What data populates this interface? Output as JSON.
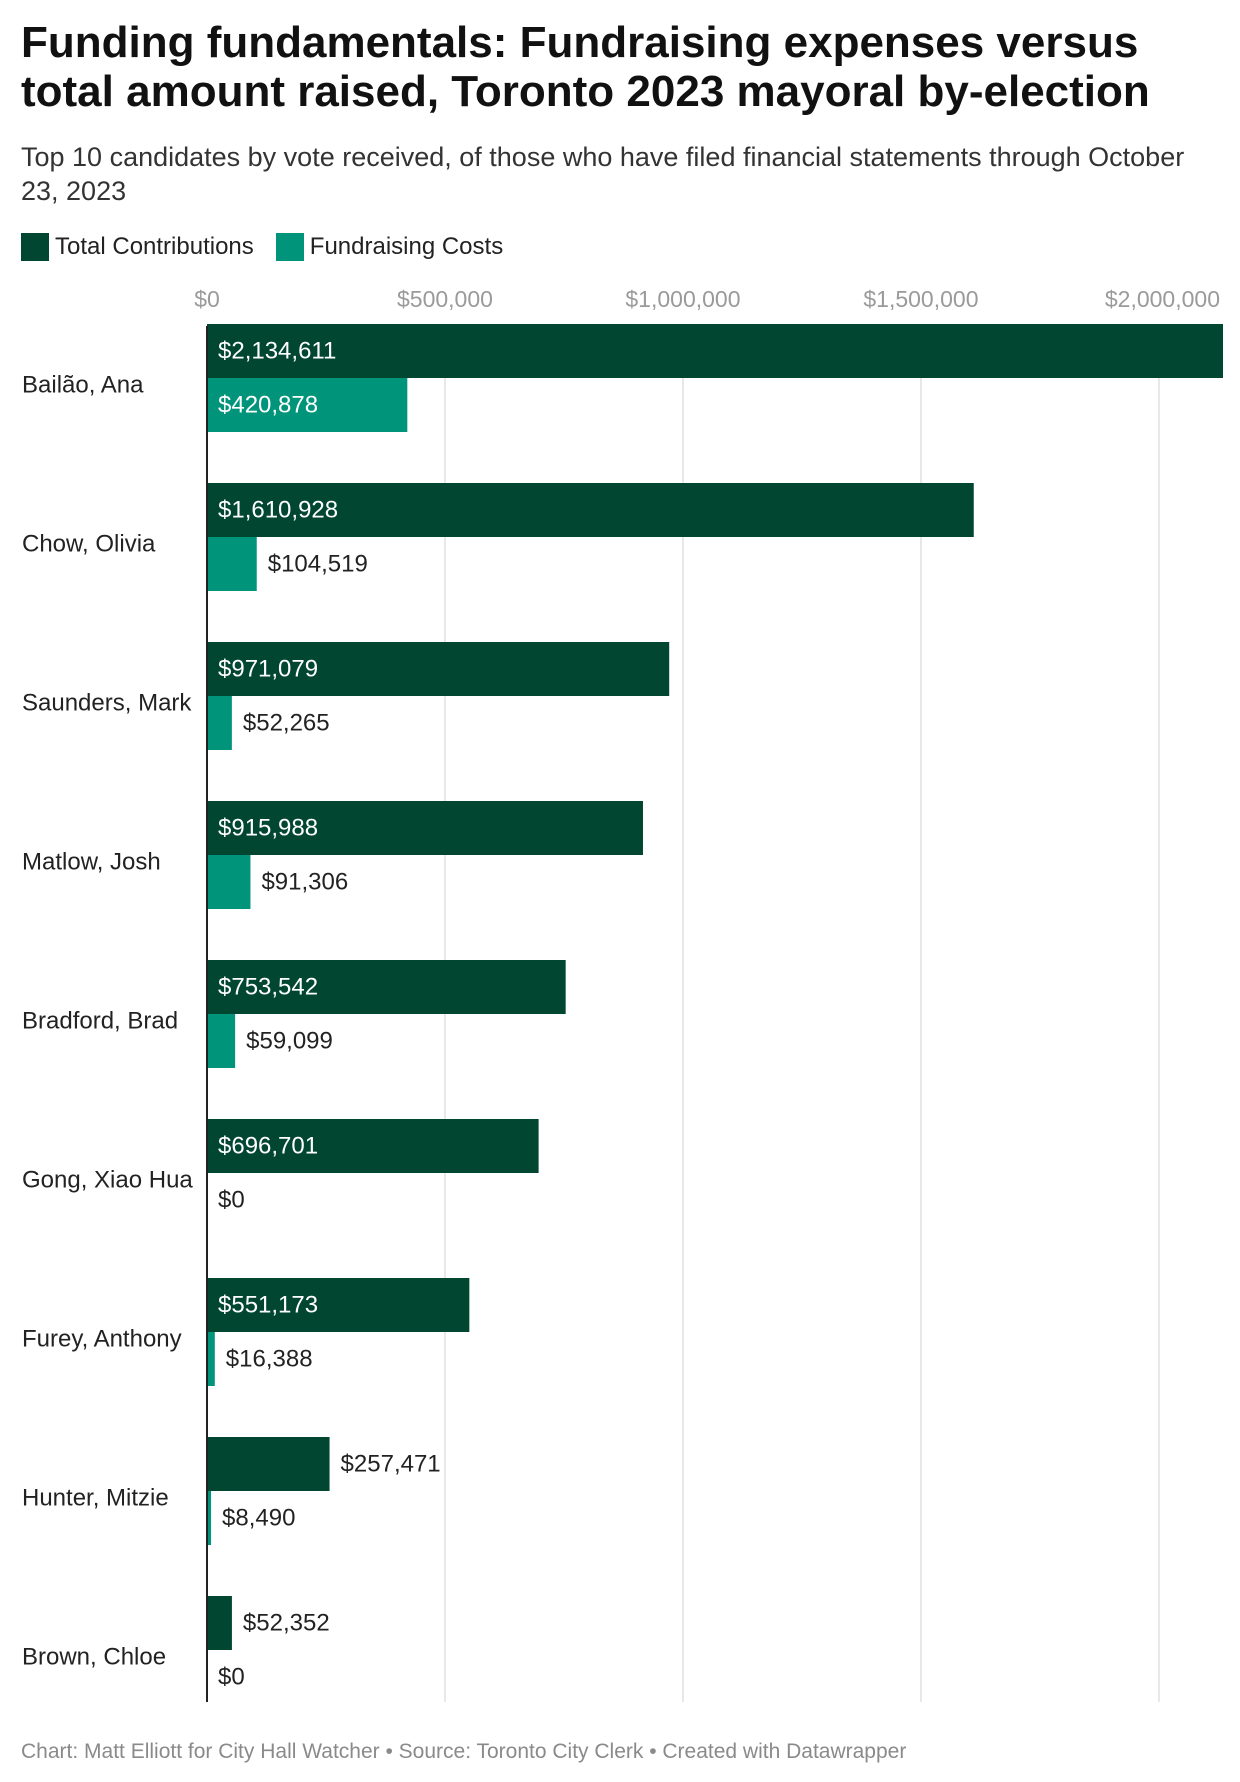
{
  "header": {
    "title": "Funding fundamentals: Fundraising expenses versus total amount raised, Toronto 2023 mayoral by-election",
    "subtitle": "Top 10 candidates by vote received, of those who have filed financial statements through October 23, 2023"
  },
  "legend": {
    "items": [
      {
        "label": "Total Contributions",
        "color": "#004631"
      },
      {
        "label": "Fundraising Costs",
        "color": "#00947a"
      }
    ]
  },
  "footer": {
    "credit": "Chart: Matt Elliott for City Hall Watcher • Source: Toronto City Clerk • Created with Datawrapper"
  },
  "chart_data": {
    "type": "bar",
    "orientation": "horizontal",
    "categories": [
      "Bailão, Ana",
      "Chow, Olivia",
      "Saunders, Mark",
      "Matlow, Josh",
      "Bradford, Brad",
      "Gong, Xiao Hua",
      "Furey, Anthony",
      "Hunter, Mitzie",
      "Brown, Chloe"
    ],
    "series": [
      {
        "name": "Total Contributions",
        "color": "#004631",
        "values": [
          2134611,
          1610928,
          971079,
          915988,
          753542,
          696701,
          551173,
          257471,
          52352
        ],
        "labels": [
          "$2,134,611",
          "$1,610,928",
          "$971,079",
          "$915,988",
          "$753,542",
          "$696,701",
          "$551,173",
          "$257,471",
          "$52,352"
        ]
      },
      {
        "name": "Fundraising Costs",
        "color": "#00947a",
        "values": [
          420878,
          104519,
          52265,
          91306,
          59099,
          0,
          16388,
          8490,
          0
        ],
        "labels": [
          "$420,878",
          "$104,519",
          "$52,265",
          "$91,306",
          "$59,099",
          "$0",
          "$16,388",
          "$8,490",
          "$0"
        ]
      }
    ],
    "xlim": [
      0,
      2134611
    ],
    "ticks": [
      {
        "value": 0,
        "label": "$0"
      },
      {
        "value": 500000,
        "label": "$500,000"
      },
      {
        "value": 1000000,
        "label": "$1,000,000"
      },
      {
        "value": 1500000,
        "label": "$1,500,000"
      },
      {
        "value": 2000000,
        "label": "$2,000,000"
      }
    ],
    "grid": true,
    "legend_position": "top-left"
  }
}
